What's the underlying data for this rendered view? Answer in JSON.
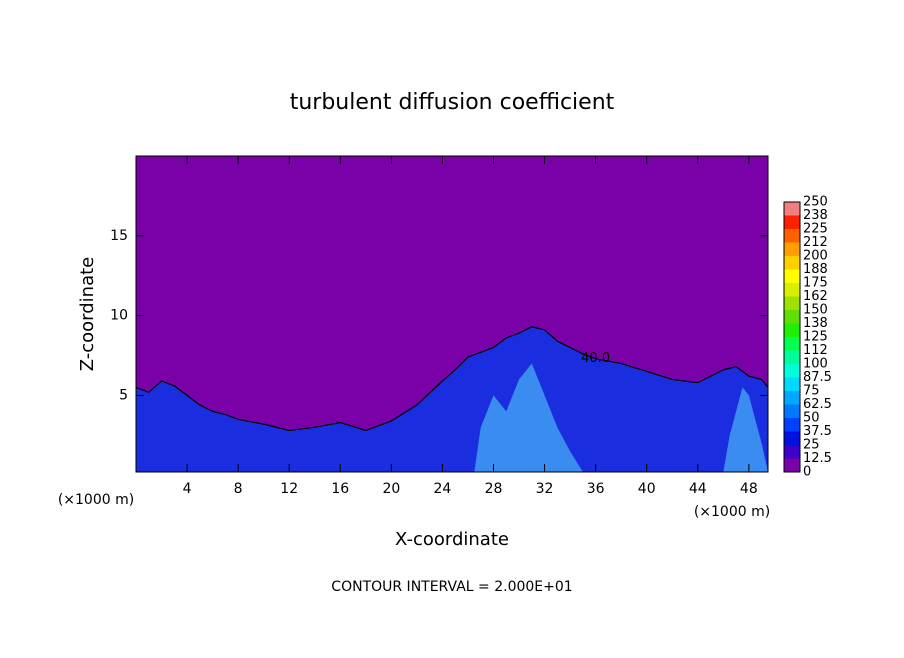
{
  "chart_data": {
    "type": "contour",
    "title": "turbulent diffusion coefficient",
    "x_label": "X-coordinate",
    "y_label": "Z-coordinate",
    "x_unit": "(×1000 m)",
    "footer": "CONTOUR INTERVAL = 2.000E+01",
    "xlim": [
      0,
      49.5
    ],
    "ylim": [
      0.2,
      20
    ],
    "xticks": [
      4,
      8,
      12,
      16,
      20,
      24,
      28,
      32,
      36,
      40,
      44,
      48
    ],
    "yticks": [
      5,
      10,
      15
    ],
    "regions": [
      {
        "color": "#1a2ee0",
        "x": [
          0,
          1,
          2,
          3,
          4,
          5,
          6,
          7,
          8,
          10,
          12,
          14,
          16,
          18,
          20,
          22,
          24,
          25,
          26,
          27,
          28,
          29,
          30,
          31,
          32,
          33,
          34,
          35,
          36,
          38,
          40,
          42,
          44,
          45,
          46,
          47,
          48,
          49,
          49.5
        ],
        "values": [
          5.5,
          5.2,
          5.9,
          5.6,
          5.0,
          4.4,
          4.0,
          3.8,
          3.5,
          3.2,
          2.8,
          3.0,
          3.3,
          2.8,
          3.4,
          4.4,
          5.9,
          6.6,
          7.4,
          7.7,
          8.0,
          8.6,
          8.9,
          9.3,
          9.1,
          8.4,
          8.0,
          7.6,
          7.3,
          7.0,
          6.5,
          6.0,
          5.8,
          6.2,
          6.6,
          6.8,
          6.2,
          6.0,
          5.5
        ]
      },
      {
        "color": "#3a8cf0",
        "x": [
          26.5,
          27,
          28,
          29,
          30,
          31,
          32,
          33,
          34,
          35
        ],
        "values": [
          0.2,
          3.0,
          5.0,
          4.0,
          6.0,
          7.0,
          5.0,
          3.0,
          1.5,
          0.2
        ]
      },
      {
        "color": "#3a8cf0",
        "x": [
          46,
          46.5,
          47,
          47.5,
          48,
          48.5,
          49,
          49.5
        ],
        "values": [
          0.2,
          2.5,
          4.0,
          5.5,
          5.0,
          3.5,
          2.0,
          0.2
        ]
      }
    ],
    "contour_label": {
      "text": "40.0",
      "x": 36,
      "z": 7.3
    },
    "colorbar": {
      "levels": [
        0,
        {
          "value": 12.5,
          "label": "12.5"
        },
        25,
        {
          "value": 37.5,
          "label": "37.5"
        },
        50,
        {
          "value": 62.5,
          "label": "62.5"
        },
        75,
        {
          "value": 87.5,
          "label": "87.5"
        },
        100,
        {
          "value": 112.5,
          "label": "112"
        },
        125,
        {
          "value": 137.5,
          "label": "138"
        },
        150,
        {
          "value": 162.5,
          "label": "162"
        },
        175,
        {
          "value": 187.5,
          "label": "188"
        },
        200,
        {
          "value": 212.5,
          "label": "212"
        },
        225,
        {
          "value": 237.5,
          "label": "238"
        },
        250
      ],
      "colors": [
        "#7a00a8",
        "#3c00c8",
        "#0010e0",
        "#0040ff",
        "#0078ff",
        "#00a8ff",
        "#00d8ff",
        "#00ffd8",
        "#00ff98",
        "#00ff50",
        "#20ee00",
        "#60e000",
        "#a0e000",
        "#d8f000",
        "#ffff00",
        "#ffd000",
        "#ffa000",
        "#ff6000",
        "#ff2000",
        "#f08080"
      ]
    }
  }
}
